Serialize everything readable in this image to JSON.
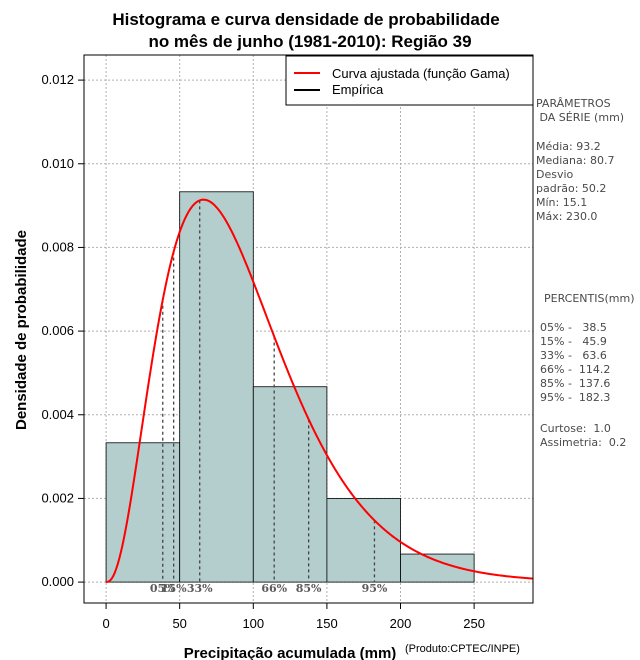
{
  "title_line1": "Histograma e curva densidade de probabilidade",
  "title_line2": "no mês de junho (1981-2010): Região 39",
  "credit": "(Produto:CPTEC/INPE)",
  "chart_data": {
    "type": "bar",
    "xlabel": "Precipitação acumulada (mm)",
    "ylabel": "Densidade de probabilidade",
    "xlim": [
      -15,
      290
    ],
    "ylim": [
      -0.0005,
      0.0126
    ],
    "xticks": [
      0,
      50,
      100,
      150,
      200,
      250
    ],
    "yticks": [
      0.0,
      0.002,
      0.004,
      0.006,
      0.008,
      0.01,
      0.012
    ],
    "xtick_labels": [
      "0",
      "50",
      "100",
      "150",
      "200",
      "250"
    ],
    "ytick_labels": [
      "0.000",
      "0.002",
      "0.004",
      "0.006",
      "0.008",
      "0.010",
      "0.012"
    ],
    "grid": true,
    "bin_edges": [
      0,
      50,
      100,
      150,
      200,
      250
    ],
    "values": [
      0.00333,
      0.00933,
      0.00467,
      0.002,
      0.00067
    ],
    "bar_color": "#b4cdcd",
    "curve": {
      "name": "Curva ajustada (função Gama)",
      "color": "#ff0000",
      "shape": 3.46,
      "scale": 26.9
    },
    "empirical": {
      "name": "Empírica",
      "color": "#000000"
    },
    "legend_position": "top-right",
    "percentile_markers": [
      {
        "x": 38.5,
        "label": "05%"
      },
      {
        "x": 45.9,
        "label": "15%"
      },
      {
        "x": 63.6,
        "label": "33%"
      },
      {
        "x": 114.2,
        "label": "66%"
      },
      {
        "x": 137.6,
        "label": "85%"
      },
      {
        "x": 182.3,
        "label": "95%"
      }
    ]
  },
  "side_panel": {
    "params_lines": [
      "PARÂMETROS",
      " DA SÉRIE (mm)"
    ],
    "stats_lines": [
      "Média:  93.2",
      "Mediana:  80.7",
      "Desvio",
      "padrão:  50.2",
      "Mín:  15.1",
      "Máx:  230.0"
    ],
    "percentis_title": "PERCENTIS(mm)",
    "percentis_lines": [
      "05% -   38.5",
      "15% -   45.9",
      "33% -   63.6",
      "66% -  114.2",
      "85% -  137.6",
      "95% -  182.3"
    ],
    "shape_lines": [
      "Curtose:  1.0",
      "Assimetria:  0.2"
    ]
  }
}
